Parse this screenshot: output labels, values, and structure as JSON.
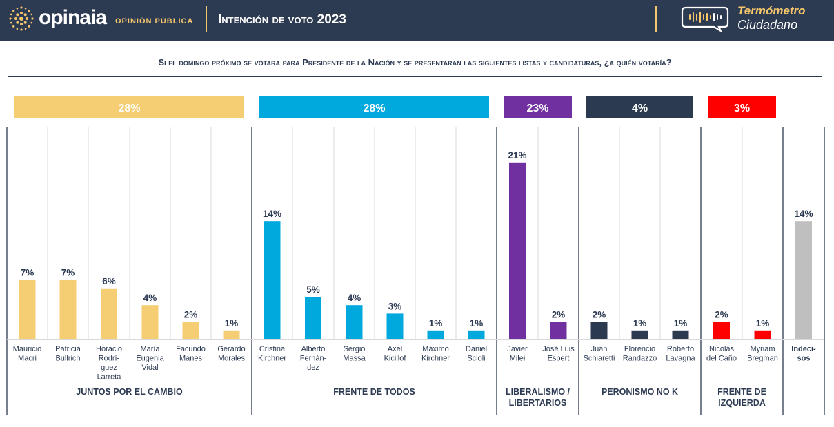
{
  "header": {
    "logo_word": "opinaia",
    "logo_sub": "OPINIÓN PÚBLICA",
    "title": "Intención de voto 2023",
    "badge_line1": "Termómetro",
    "badge_line2": "Ciudadano"
  },
  "question": "Si el domingo próximo se votara para Presidente de la Nación y se presentaran las siguientes listas y candidaturas, ¿a quién votaría?",
  "colors": {
    "navy": "#2c3a52",
    "gold": "#f5c66b",
    "yellow": "#f5cd72",
    "cyan": "#00a9dd",
    "purple": "#7030a0",
    "dark": "#2b3a4f",
    "red": "#ff0000",
    "gray": "#bfbfbf"
  },
  "chart_data": {
    "type": "bar",
    "ylim": [
      0,
      25
    ],
    "categories": [
      "Mauricio Macri",
      "Patricia Bullrich",
      "Horacio Rodríguez Larreta",
      "María Eugenia Vidal",
      "Facundo Manes",
      "Gerardo Morales",
      "Cristina Kirchner",
      "Alberto Fernández",
      "Sergio Massa",
      "Axel Kicillof",
      "Máximo Kirchner",
      "Daniel Scioli",
      "Javier Milei",
      "José Luis Espert",
      "Juan Schiaretti",
      "Florencio Randazzo",
      "Roberto Lavagna",
      "Nicolás del Caño",
      "Myriam Bregman",
      "Indecisos"
    ],
    "candidates": [
      {
        "lines": [
          "Mauricio",
          "Macri"
        ],
        "value": 7,
        "label": "7%",
        "group": 0
      },
      {
        "lines": [
          "Patricia",
          "Bullrich"
        ],
        "value": 7,
        "label": "7%",
        "group": 0
      },
      {
        "lines": [
          "Horacio",
          "Rodrí-",
          "guez",
          "Larreta"
        ],
        "value": 6,
        "label": "6%",
        "group": 0
      },
      {
        "lines": [
          "María",
          "Eugenia",
          "Vidal"
        ],
        "value": 4,
        "label": "4%",
        "group": 0
      },
      {
        "lines": [
          "Facundo",
          "Manes"
        ],
        "value": 2,
        "label": "2%",
        "group": 0
      },
      {
        "lines": [
          "Gerardo",
          "Morales"
        ],
        "value": 1,
        "label": "1%",
        "group": 0
      },
      {
        "lines": [
          "Cristina",
          "Kirchner"
        ],
        "value": 14,
        "label": "14%",
        "group": 1
      },
      {
        "lines": [
          "Alberto",
          "Fernán-",
          "dez"
        ],
        "value": 5,
        "label": "5%",
        "group": 1
      },
      {
        "lines": [
          "Sergio",
          "Massa"
        ],
        "value": 4,
        "label": "4%",
        "group": 1
      },
      {
        "lines": [
          "Axel",
          "Kicillof"
        ],
        "value": 3,
        "label": "3%",
        "group": 1
      },
      {
        "lines": [
          "Máximo",
          "Kirchner"
        ],
        "value": 1,
        "label": "1%",
        "group": 1
      },
      {
        "lines": [
          "Daniel",
          "Scioli"
        ],
        "value": 1,
        "label": "1%",
        "group": 1
      },
      {
        "lines": [
          "Javier",
          "Milei"
        ],
        "value": 21,
        "label": "21%",
        "group": 2
      },
      {
        "lines": [
          "José Luis",
          "Espert"
        ],
        "value": 2,
        "label": "2%",
        "group": 2
      },
      {
        "lines": [
          "Juan",
          "Schiaretti"
        ],
        "value": 2,
        "label": "2%",
        "group": 3
      },
      {
        "lines": [
          "Florencio",
          "Randazzo"
        ],
        "value": 1,
        "label": "1%",
        "group": 3
      },
      {
        "lines": [
          "Roberto",
          "Lavagna"
        ],
        "value": 1,
        "label": "1%",
        "group": 3
      },
      {
        "lines": [
          "Nicolás",
          "del Caño"
        ],
        "value": 2,
        "label": "2%",
        "group": 4
      },
      {
        "lines": [
          "Myriam",
          "Bregman"
        ],
        "value": 1,
        "label": "1%",
        "group": 4
      },
      {
        "lines": [
          "Indeci-",
          "sos"
        ],
        "value": 14,
        "label": "14%",
        "group": 5
      }
    ],
    "groups": [
      {
        "name_lines": [
          "JUNTOS POR EL CAMBIO"
        ],
        "total_label": "28%",
        "color": "#f5cd72"
      },
      {
        "name_lines": [
          "FRENTE DE TODOS"
        ],
        "total_label": "28%",
        "color": "#00a9dd"
      },
      {
        "name_lines": [
          "LIBERALISMO /",
          "LIBERTARIOS"
        ],
        "total_label": "23%",
        "color": "#7030a0"
      },
      {
        "name_lines": [
          "PERONISMO NO K"
        ],
        "total_label": "4%",
        "color": "#2b3a4f"
      },
      {
        "name_lines": [
          "FRENTE DE",
          "IZQUIERDA"
        ],
        "total_label": "3%",
        "color": "#ff0000"
      },
      {
        "name_lines": [],
        "total_label": "",
        "color": "#bfbfbf"
      }
    ]
  }
}
